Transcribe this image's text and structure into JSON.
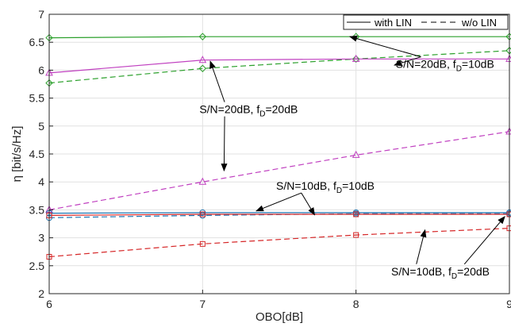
{
  "chart_data": {
    "type": "line",
    "xlabel": "OBO[dB]",
    "ylabel": "η [bit/s/Hz]",
    "xlim": [
      6,
      9
    ],
    "ylim": [
      2,
      7
    ],
    "xticks": [
      "6",
      "7",
      "8",
      "9"
    ],
    "yticks": [
      "2",
      "2.5",
      "3",
      "3.5",
      "4",
      "4.5",
      "5",
      "5.5",
      "6",
      "6.5",
      "7"
    ],
    "grid": true,
    "legend_position": "top-right",
    "legend": [
      {
        "label": "with LIN",
        "style": "solid"
      },
      {
        "label": "w/o LIN",
        "style": "dashed"
      }
    ],
    "x": [
      6,
      7,
      8,
      9
    ],
    "series": [
      {
        "values": [
          6.58,
          6.6,
          6.6,
          6.6
        ],
        "color": "#2ca02c",
        "style": "solid",
        "marker": "diamond"
      },
      {
        "values": [
          5.77,
          6.03,
          6.2,
          6.35
        ],
        "color": "#2ca02c",
        "style": "dashed",
        "marker": "diamond"
      },
      {
        "values": [
          5.95,
          6.18,
          6.2,
          6.2
        ],
        "color": "#c040c0",
        "style": "solid",
        "marker": "triangle"
      },
      {
        "values": [
          3.5,
          4.0,
          4.48,
          4.9
        ],
        "color": "#c040c0",
        "style": "dashed",
        "marker": "triangle"
      },
      {
        "values": [
          3.44,
          3.45,
          3.45,
          3.45
        ],
        "color": "#1f77b4",
        "style": "solid",
        "marker": "circle"
      },
      {
        "values": [
          3.36,
          3.4,
          3.43,
          3.43
        ],
        "color": "#1f77b4",
        "style": "dashed",
        "marker": "circle"
      },
      {
        "values": [
          3.4,
          3.42,
          3.42,
          3.42
        ],
        "color": "#d62728",
        "style": "solid",
        "marker": "square"
      },
      {
        "values": [
          2.66,
          2.89,
          3.05,
          3.17
        ],
        "color": "#d62728",
        "style": "dashed",
        "marker": "square"
      }
    ],
    "annotations": [
      {
        "text": "S/N=20dB, f_D=10dB",
        "anchor_data": [
          8.58,
          6.04
        ],
        "targets": [
          [
            7.96,
            6.6
          ],
          [
            8.25,
            6.09
          ]
        ]
      },
      {
        "text": "S/N=20dB, f_D=20dB",
        "anchor_data": [
          7.3,
          5.23
        ],
        "targets": [
          [
            7.05,
            6.16
          ],
          [
            7.14,
            4.2
          ]
        ]
      },
      {
        "text": "S/N=10dB, f_D=10dB",
        "anchor_data": [
          7.8,
          3.86
        ],
        "targets": [
          [
            7.35,
            3.48
          ],
          [
            7.73,
            3.41
          ]
        ]
      },
      {
        "text": "S/N=10dB, f_D=20dB",
        "anchor_data": [
          8.55,
          2.33
        ],
        "targets": [
          [
            8.45,
            3.14
          ],
          [
            8.97,
            3.38
          ]
        ]
      }
    ]
  }
}
